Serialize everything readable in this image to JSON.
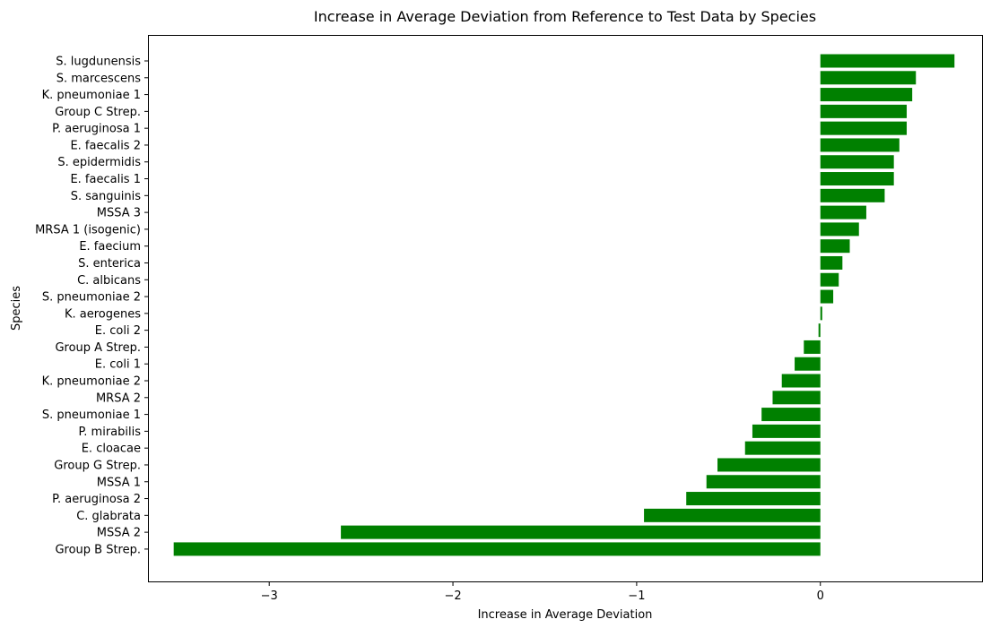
{
  "chart_data": {
    "type": "bar",
    "orientation": "horizontal",
    "title": "Increase in Average Deviation from Reference to Test Data by Species",
    "xlabel": "Increase in Average Deviation",
    "ylabel": "Species",
    "xlim": [
      -3.66,
      0.88
    ],
    "xticks": [
      -3,
      -2,
      -1,
      0
    ],
    "xtick_labels": [
      "−3",
      "−2",
      "−1",
      "0"
    ],
    "bar_color": "#008000",
    "grid": false,
    "categories": [
      "S. lugdunensis",
      "S. marcescens",
      "K. pneumoniae 1",
      "Group C Strep.",
      "P. aeruginosa 1",
      "E. faecalis 2",
      "S. epidermidis",
      "E. faecalis 1",
      "S. sanguinis",
      "MSSA 3",
      "MRSA 1 (isogenic)",
      "E. faecium",
      "S. enterica",
      "C. albicans",
      "S. pneumoniae 2",
      "K. aerogenes",
      "E. coli 2",
      "Group A Strep.",
      "E. coli 1",
      "K. pneumoniae 2",
      "MRSA 2",
      "S. pneumoniae 1",
      "P. mirabilis",
      "E. cloacae",
      "Group G Strep.",
      "MSSA 1",
      "P. aeruginosa 2",
      "C. glabrata",
      "MSSA 2",
      "Group B Strep."
    ],
    "values": [
      0.73,
      0.52,
      0.5,
      0.47,
      0.47,
      0.43,
      0.4,
      0.4,
      0.35,
      0.25,
      0.21,
      0.16,
      0.12,
      0.1,
      0.07,
      0.01,
      -0.01,
      -0.09,
      -0.14,
      -0.21,
      -0.26,
      -0.32,
      -0.37,
      -0.41,
      -0.56,
      -0.62,
      -0.73,
      -0.96,
      -2.61,
      -3.52
    ]
  }
}
